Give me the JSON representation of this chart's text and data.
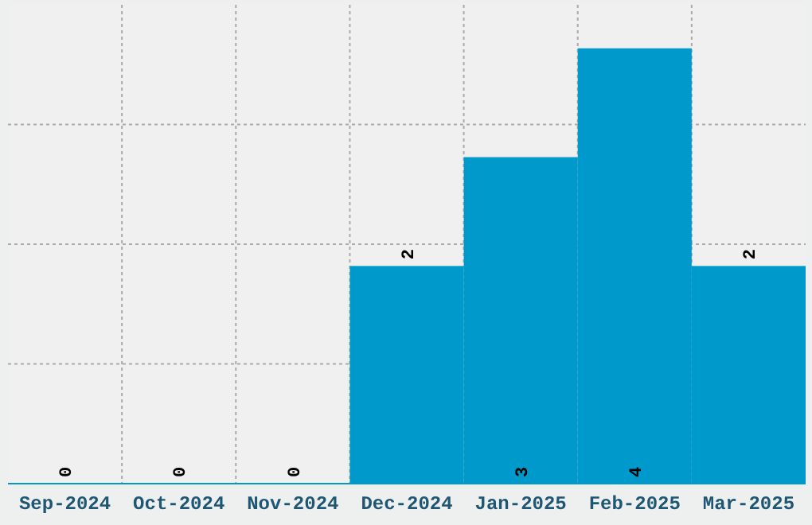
{
  "chart_data": {
    "type": "bar",
    "categories": [
      "Sep-2024",
      "Oct-2024",
      "Nov-2024",
      "Dec-2024",
      "Jan-2025",
      "Feb-2025",
      "Mar-2025"
    ],
    "values": [
      0,
      0,
      0,
      2,
      3,
      4,
      2
    ],
    "color": "#0099cc",
    "ylim": [
      0,
      4.4
    ],
    "yticks": [
      {
        "value": 1.1,
        "label": null
      },
      {
        "value": 2.2,
        "label": null
      },
      {
        "value": 3.3,
        "label": null
      }
    ],
    "grid": true,
    "tick_labels": "x",
    "data_labels": true
  }
}
